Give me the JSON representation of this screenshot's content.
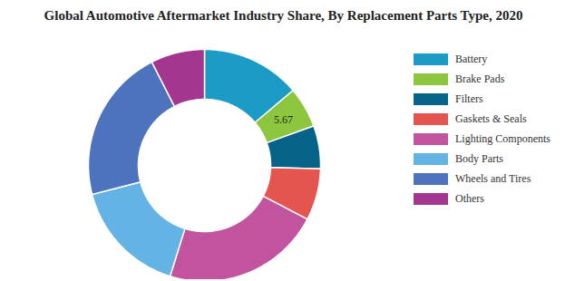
{
  "chart_data": {
    "type": "donut",
    "title": "Global Automotive Aftermarket Industry Share, By Replacement Parts Type, 2020",
    "categories": [
      "Battery",
      "Brake Pads",
      "Filters",
      "Gaskets & Seals",
      "Lighting Components",
      "Body Parts",
      "Wheels and Tires",
      "Others"
    ],
    "values": [
      13.8,
      5.67,
      6,
      7.2,
      22.1,
      16.2,
      21.5,
      7.5
    ],
    "value_labels": [
      null,
      "5.67",
      null,
      null,
      null,
      null,
      null,
      null
    ],
    "colors": [
      "#1b9bc5",
      "#8cc63f",
      "#05638a",
      "#e5554f",
      "#c2549f",
      "#63b4e4",
      "#4e73be",
      "#a3378f"
    ],
    "legend": "right"
  }
}
